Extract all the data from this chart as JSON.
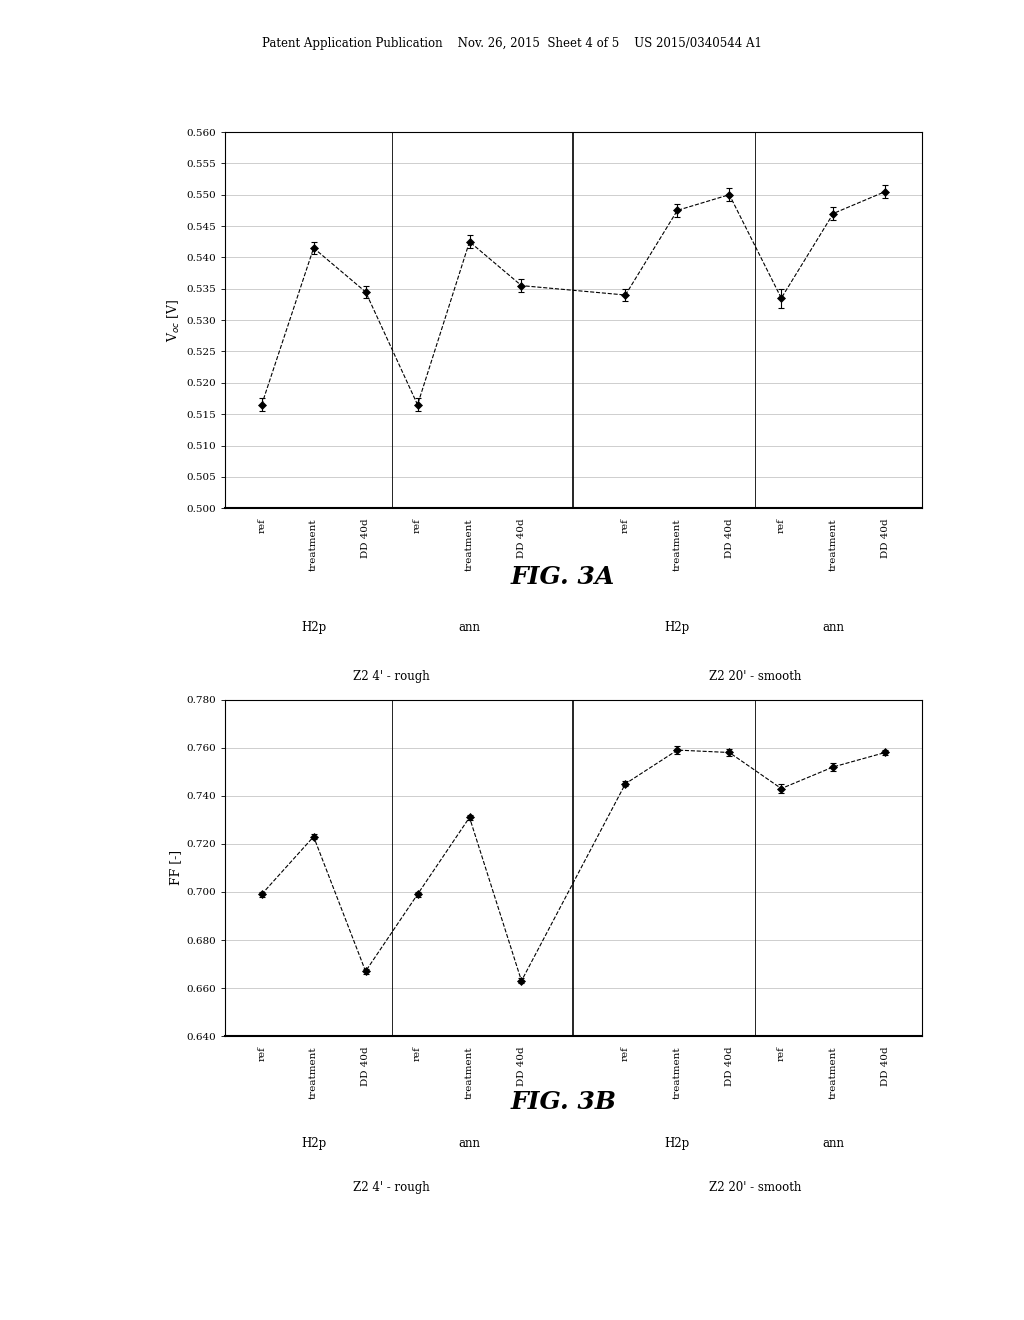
{
  "fig3a": {
    "ylabel": "V$_{oc}$ [V]",
    "ylim": [
      0.5,
      0.56
    ],
    "yticks": [
      0.5,
      0.505,
      0.51,
      0.515,
      0.52,
      0.525,
      0.53,
      0.535,
      0.54,
      0.545,
      0.55,
      0.555,
      0.56
    ],
    "groups": [
      {
        "label": "H2p",
        "subgroups": [
          "ref",
          "treatment",
          "DD 40d"
        ]
      },
      {
        "label": "ann",
        "subgroups": [
          "ref",
          "treatment",
          "DD 40d"
        ]
      },
      {
        "label": "H2p",
        "subgroups": [
          "ref",
          "treatment",
          "DD 40d"
        ]
      },
      {
        "label": "ann",
        "subgroups": [
          "ref",
          "treatment",
          "DD 40d"
        ]
      }
    ],
    "values": [
      0.5165,
      0.5415,
      0.5345,
      0.5165,
      0.5425,
      0.5355,
      0.534,
      0.5475,
      0.55,
      0.5335,
      0.547,
      0.5505
    ],
    "errors": [
      0.001,
      0.001,
      0.001,
      0.001,
      0.001,
      0.001,
      0.001,
      0.001,
      0.001,
      0.0015,
      0.001,
      0.001
    ],
    "section_labels": [
      "Z2 4' - rough",
      "Z2 20' - smooth"
    ],
    "fig_label": "FIG. 3A"
  },
  "fig3b": {
    "ylabel": "FF [-]",
    "ylim": [
      0.64,
      0.78
    ],
    "yticks": [
      0.64,
      0.66,
      0.68,
      0.7,
      0.72,
      0.74,
      0.76,
      0.78
    ],
    "groups": [
      {
        "label": "H2p",
        "subgroups": [
          "ref",
          "treatment",
          "DD 40d"
        ]
      },
      {
        "label": "ann",
        "subgroups": [
          "ref",
          "treatment",
          "DD 40d"
        ]
      },
      {
        "label": "H2p",
        "subgroups": [
          "ref",
          "treatment",
          "DD 40d"
        ]
      },
      {
        "label": "ann",
        "subgroups": [
          "ref",
          "treatment",
          "DD 40d"
        ]
      }
    ],
    "values": [
      0.699,
      0.723,
      0.667,
      0.699,
      0.731,
      0.663,
      0.745,
      0.759,
      0.758,
      0.743,
      0.752,
      0.758
    ],
    "errors": [
      0.001,
      0.001,
      0.001,
      0.001,
      0.001,
      0.001,
      0.001,
      0.0015,
      0.0015,
      0.002,
      0.0015,
      0.001
    ],
    "section_labels": [
      "Z2 4' - rough",
      "Z2 20' - smooth"
    ],
    "fig_label": "FIG. 3B"
  },
  "header_text": "Patent Application Publication    Nov. 26, 2015  Sheet 4 of 5    US 2015/0340544 A1",
  "bg_color": "#ffffff",
  "plot_bg": "#ffffff",
  "line_color": "#000000",
  "marker_color": "#000000",
  "grid_color": "#bbbbbb"
}
